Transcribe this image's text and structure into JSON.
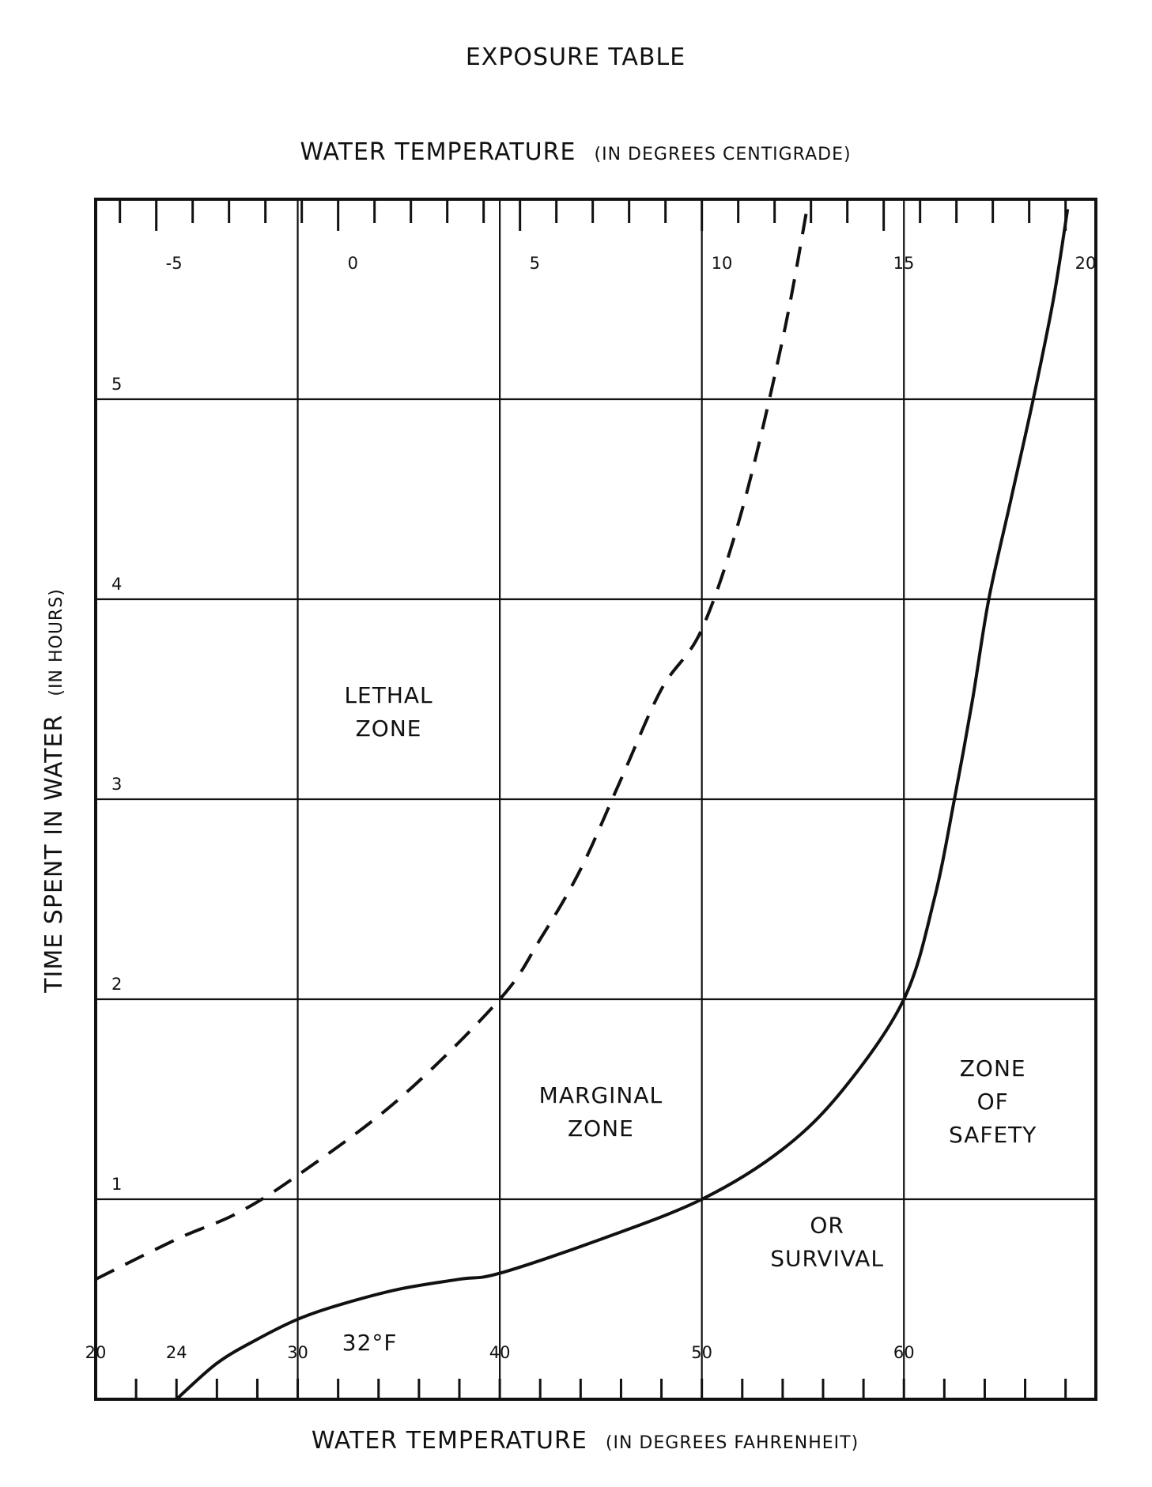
{
  "chart_data": {
    "type": "line",
    "title": "EXPOSURE TABLE",
    "x_top_axis": {
      "title": "WATER TEMPERATURE",
      "subtitle": "(IN DEGREES CENTIGRADE)",
      "unit": "C",
      "tick_labels": [
        "-5",
        "0",
        "5",
        "10",
        "15",
        "20"
      ],
      "tick_values": [
        -5,
        0,
        5,
        10,
        15,
        20
      ],
      "range_c": [
        -6.67,
        20.83
      ]
    },
    "x_bottom_axis": {
      "title": "WATER TEMPERATURE",
      "subtitle": "(IN DEGREES FAHRENHEIT)",
      "unit": "F",
      "tick_labels": [
        "20",
        "24",
        "30",
        "40",
        "50",
        "60"
      ],
      "tick_values": [
        20,
        24,
        30,
        40,
        50,
        60
      ],
      "annotation": "32°F",
      "range_f": [
        20,
        69.5
      ]
    },
    "y_axis": {
      "title": "TIME SPENT IN WATER",
      "subtitle": "(IN HOURS)",
      "tick_labels": [
        "1",
        "2",
        "3",
        "4",
        "5"
      ],
      "tick_values": [
        1,
        2,
        3,
        4,
        5
      ],
      "range": [
        0,
        6
      ]
    },
    "grid": true,
    "series": [
      {
        "style": "dashed",
        "unit_x": "F",
        "points": [
          [
            20,
            0.6
          ],
          [
            24,
            0.8
          ],
          [
            27,
            0.93
          ],
          [
            30,
            1.12
          ],
          [
            35,
            1.5
          ],
          [
            40,
            2.0
          ],
          [
            42,
            2.3
          ],
          [
            44,
            2.65
          ],
          [
            46,
            3.1
          ],
          [
            48,
            3.55
          ],
          [
            50,
            3.85
          ],
          [
            52,
            4.45
          ],
          [
            54,
            5.3
          ],
          [
            55.2,
            5.95
          ]
        ]
      },
      {
        "style": "solid",
        "unit_x": "F",
        "points": [
          [
            24,
            0.0
          ],
          [
            26,
            0.18
          ],
          [
            28,
            0.3
          ],
          [
            30,
            0.4
          ],
          [
            32,
            0.47
          ],
          [
            35,
            0.55
          ],
          [
            38,
            0.6
          ],
          [
            40,
            0.63
          ],
          [
            45,
            0.8
          ],
          [
            50,
            1.0
          ],
          [
            54,
            1.25
          ],
          [
            57,
            1.55
          ],
          [
            60,
            2.0
          ],
          [
            61.5,
            2.5
          ],
          [
            62.5,
            3.0
          ],
          [
            63.4,
            3.5
          ],
          [
            64.2,
            4.0
          ],
          [
            65.3,
            4.5
          ],
          [
            66.4,
            5.0
          ],
          [
            67.4,
            5.5
          ],
          [
            68.1,
            5.95
          ]
        ]
      }
    ],
    "zone_labels": [
      {
        "lines": [
          "LETHAL",
          "ZONE"
        ],
        "x_f": 34.5,
        "y": 3.4
      },
      {
        "lines": [
          "MARGINAL",
          "ZONE"
        ],
        "x_f": 45,
        "y": 1.4
      },
      {
        "lines": [
          "ZONE",
          "OF",
          "SAFETY"
        ],
        "x_f": 64.4,
        "y": 1.45
      },
      {
        "lines": [
          "OR",
          "SURVIVAL"
        ],
        "x_f": 56.2,
        "y": 0.75
      }
    ]
  }
}
